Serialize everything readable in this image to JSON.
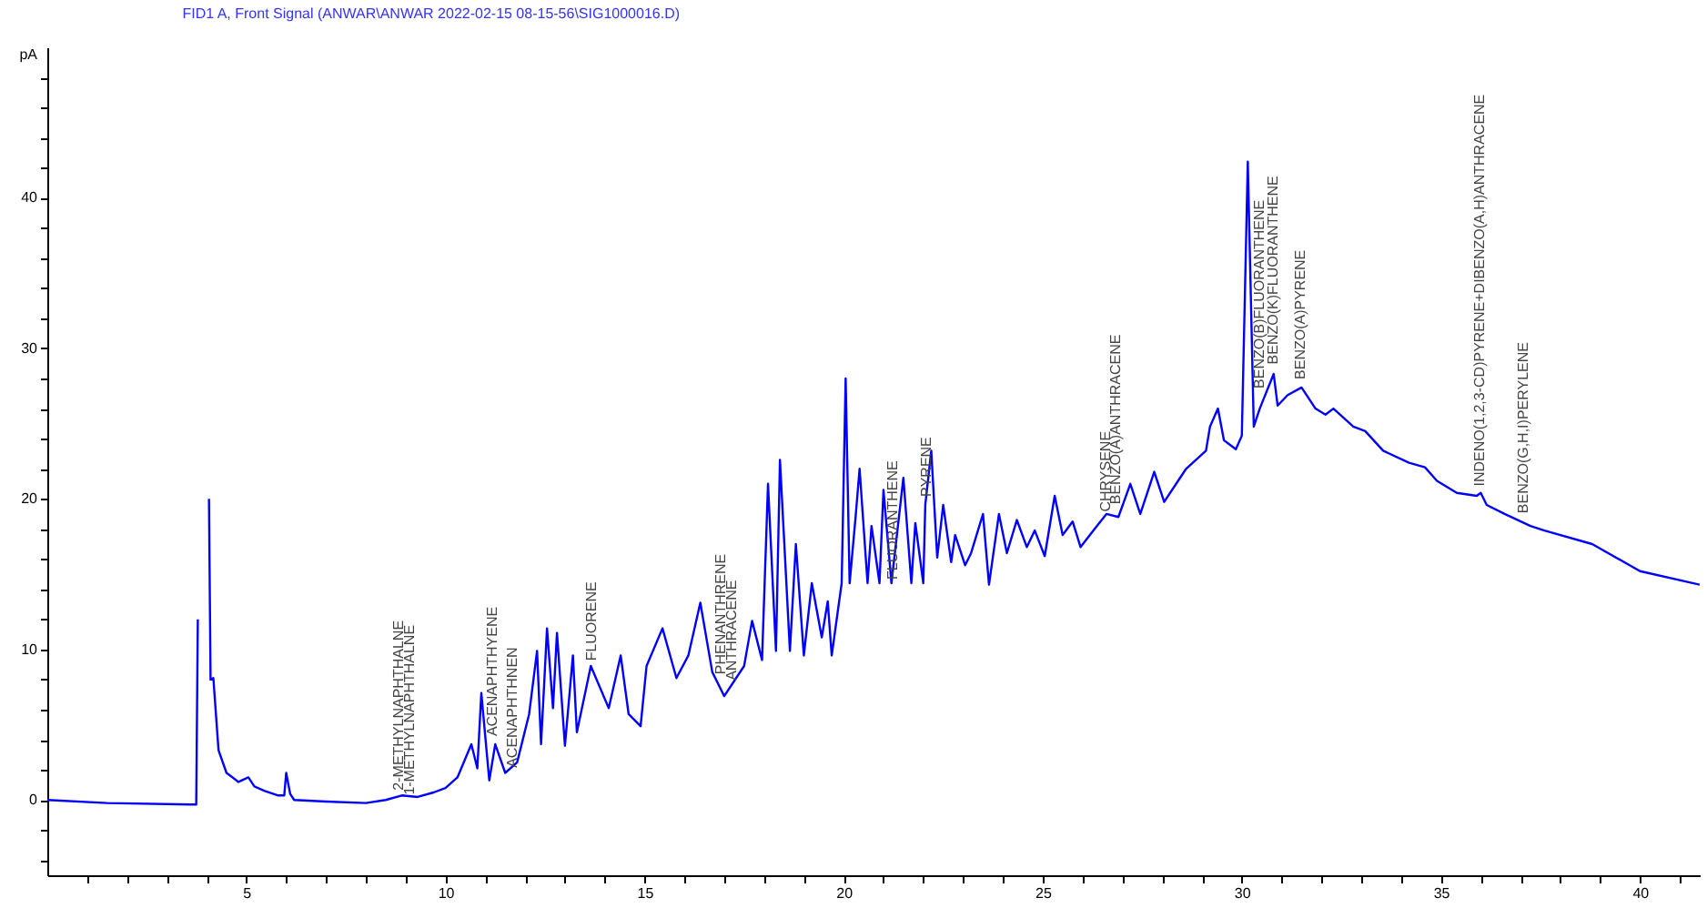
{
  "chart_data": {
    "type": "line",
    "title": "FID1 A, Front Signal (ANWAR\\ANWAR 2022-02-15 08-15-56\\SIG1000016.D)",
    "ylabel": "pA",
    "xlim": [
      0,
      41.5
    ],
    "ylim": [
      -5,
      50
    ],
    "xticks": [
      {
        "value": 1,
        "label": null
      },
      {
        "value": 2,
        "label": null
      },
      {
        "value": 3,
        "label": null
      },
      {
        "value": 4,
        "label": null
      },
      5,
      {
        "value": 6,
        "label": null
      },
      {
        "value": 7,
        "label": null
      },
      {
        "value": 8,
        "label": null
      },
      {
        "value": 9,
        "label": null
      },
      10,
      {
        "value": 11,
        "label": null
      },
      {
        "value": 12,
        "label": null
      },
      {
        "value": 13,
        "label": null
      },
      {
        "value": 14,
        "label": null
      },
      15,
      {
        "value": 16,
        "label": null
      },
      {
        "value": 17,
        "label": null
      },
      {
        "value": 18,
        "label": null
      },
      {
        "value": 19,
        "label": null
      },
      20,
      {
        "value": 21,
        "label": null
      },
      {
        "value": 22,
        "label": null
      },
      {
        "value": 23,
        "label": null
      },
      {
        "value": 24,
        "label": null
      },
      25,
      {
        "value": 26,
        "label": null
      },
      {
        "value": 27,
        "label": null
      },
      {
        "value": 28,
        "label": null
      },
      {
        "value": 29,
        "label": null
      },
      30,
      {
        "value": 31,
        "label": null
      },
      {
        "value": 32,
        "label": null
      },
      {
        "value": 33,
        "label": null
      },
      {
        "value": 34,
        "label": null
      },
      35,
      {
        "value": 36,
        "label": null
      },
      {
        "value": 37,
        "label": null
      },
      {
        "value": 38,
        "label": null
      },
      {
        "value": 39,
        "label": null
      },
      40,
      {
        "value": 41,
        "label": null
      }
    ],
    "yticks": [
      {
        "value": -4,
        "label": null
      },
      {
        "value": -2,
        "label": null
      },
      0,
      {
        "value": 2,
        "label": null
      },
      {
        "value": 4,
        "label": null
      },
      {
        "value": 6,
        "label": null
      },
      {
        "value": 8,
        "label": null
      },
      10,
      {
        "value": 12,
        "label": null
      },
      {
        "value": 14,
        "label": null
      },
      {
        "value": 16,
        "label": null
      },
      {
        "value": 18,
        "label": null
      },
      20,
      {
        "value": 22,
        "label": null
      },
      {
        "value": 24,
        "label": null
      },
      {
        "value": 26,
        "label": null
      },
      {
        "value": 28,
        "label": null
      },
      30,
      {
        "value": 32,
        "label": null
      },
      {
        "value": 34,
        "label": null
      },
      {
        "value": 36,
        "label": null
      },
      {
        "value": 38,
        "label": null
      },
      40,
      {
        "value": 42,
        "label": null
      },
      {
        "value": 44,
        "label": null
      },
      {
        "value": 46,
        "label": null
      },
      {
        "value": 48,
        "label": null
      }
    ],
    "grid": false,
    "marker": "none",
    "line_style": "solid",
    "series": [
      {
        "color": "#0000ff",
        "x": [
          0,
          1.5,
          3.6,
          3.74,
          3.78,
          3.8,
          3.9,
          4.03,
          4.06,
          4.1,
          4.17,
          4.3,
          4.5,
          4.8,
          5.05,
          5.2,
          5.46,
          5.8,
          5.95,
          6.0,
          6.1,
          6.2,
          7.0,
          8.0,
          8.5,
          8.9,
          9.3,
          9.7,
          10.0,
          10.3,
          10.65,
          10.8,
          10.9,
          11.1,
          11.25,
          11.5,
          11.8,
          12.1,
          12.3,
          12.4,
          12.55,
          12.7,
          12.8,
          13.0,
          13.2,
          13.3,
          13.65,
          14.1,
          14.4,
          14.6,
          14.9,
          15.05,
          15.45,
          15.8,
          16.1,
          16.4,
          16.7,
          17.0,
          17.5,
          17.7,
          17.95,
          18.1,
          18.3,
          18.4,
          18.65,
          18.8,
          19.0,
          19.2,
          19.45,
          19.6,
          19.7,
          19.95,
          20.05,
          20.15,
          20.3,
          20.4,
          20.6,
          20.7,
          20.9,
          21.0,
          21.2,
          21.5,
          21.7,
          21.8,
          22.0,
          22.05,
          22.2,
          22.35,
          22.5,
          22.7,
          22.8,
          23.05,
          23.2,
          23.5,
          23.65,
          23.9,
          24.1,
          24.35,
          24.6,
          24.8,
          25.05,
          25.3,
          25.5,
          25.75,
          25.95,
          26.3,
          26.6,
          26.9,
          27.2,
          27.45,
          27.8,
          28.05,
          28.4,
          28.6,
          28.85,
          29.1,
          29.2,
          29.4,
          29.55,
          29.85,
          30.0,
          30.15,
          30.3,
          30.45,
          30.8,
          30.9,
          31.15,
          31.5,
          31.85,
          32.1,
          32.3,
          32.8,
          33.1,
          33.55,
          34.2,
          34.6,
          34.9,
          35.4,
          35.9,
          36.0,
          36.15,
          36.6,
          37.25,
          37.6,
          38.8,
          40.0,
          41.5
        ],
        "values": [
          0,
          -0.2,
          -0.3,
          -0.3,
          12,
          null,
          null,
          null,
          20,
          8,
          8.1,
          3.3,
          1.8,
          1.2,
          1.5,
          0.9,
          0.6,
          0.3,
          0.3,
          1.8,
          0.4,
          0,
          -0.1,
          -0.2,
          0,
          0.3,
          0.2,
          0.5,
          0.8,
          1.5,
          3.7,
          2.1,
          7.1,
          1.3,
          3.7,
          1.8,
          2.5,
          5.7,
          9.9,
          3.7,
          11.4,
          6.1,
          11.1,
          3.6,
          9.6,
          4.5,
          8.9,
          6.1,
          9.6,
          5.7,
          4.9,
          8.9,
          11.4,
          8.1,
          9.6,
          13.1,
          8.5,
          6.9,
          8.9,
          11.9,
          9.3,
          21,
          9.9,
          22.6,
          9.9,
          17,
          9.6,
          14.4,
          10.8,
          13.2,
          9.6,
          14.4,
          28,
          14.4,
          18.8,
          22,
          14.4,
          18.2,
          14.4,
          20.6,
          14.4,
          21.4,
          14.4,
          18.4,
          14.4,
          19.6,
          23.2,
          16.1,
          19.6,
          15.8,
          17.6,
          15.6,
          16.4,
          19,
          14.3,
          19,
          16.4,
          18.6,
          16.8,
          17.9,
          16.2,
          20.2,
          17.6,
          18.5,
          16.8,
          18,
          19,
          18.8,
          21,
          19,
          21.8,
          19.8,
          21.2,
          22,
          22.6,
          23.2,
          24.8,
          26,
          23.9,
          23.3,
          24.2,
          42.4,
          24.8,
          26,
          28.3,
          26.2,
          26.9,
          27.4,
          26,
          25.6,
          26,
          24.8,
          24.5,
          23.2,
          22.4,
          22.1,
          21.2,
          20.4,
          20.2,
          20.4,
          19.6,
          19,
          18.2,
          17.9,
          17,
          15.2,
          14.3
        ]
      }
    ],
    "annotations": [
      {
        "text": "2-METHYLNAPHTHALNE",
        "x": 8.84,
        "y": 0.4
      },
      {
        "text": "1-METHYLNAPHTHALNE",
        "x": 9.12,
        "y": 0.1
      },
      {
        "text": "ACENAPHTHYENE",
        "x": 11.2,
        "y": 4
      },
      {
        "text": "ACENAPHTHNEN",
        "x": 11.7,
        "y": 1.9
      },
      {
        "text": "FLUORENE",
        "x": 13.7,
        "y": 9
      },
      {
        "text": "PHENANTHRENE",
        "x": 16.94,
        "y": 8.1
      },
      {
        "text": "ANTHRACENE",
        "x": 17.2,
        "y": 7.7
      },
      {
        "text": "FLUORANTHENE",
        "x": 21.25,
        "y": 14.4
      },
      {
        "text": "PYRENE",
        "x": 22.1,
        "y": 19.9
      },
      {
        "text": "CHRYSENE",
        "x": 26.6,
        "y": 18.9
      },
      {
        "text": "BENZO(A)ANTHRACENE",
        "x": 26.85,
        "y": 19.4
      },
      {
        "text": "BENZO(B)FLUORANTHENE",
        "x": 30.46,
        "y": 27.1
      },
      {
        "text": "BENZO(K)FLUORANTHENE",
        "x": 30.8,
        "y": 28.7
      },
      {
        "text": "BENZO(A)PYRENE",
        "x": 31.5,
        "y": 27.7
      },
      {
        "text": "INDENO(1,2,3-CD)PYRENE+DIBENZO(A,H)ANTHRACENE",
        "x": 36.0,
        "y": 20.6
      },
      {
        "text": "BENZO(G,H,I)PERYLENE",
        "x": 37.1,
        "y": 18.8
      }
    ]
  }
}
